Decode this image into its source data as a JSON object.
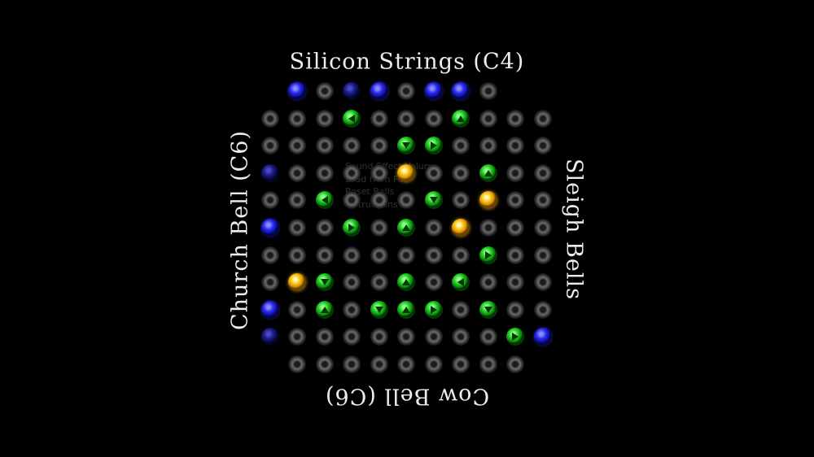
{
  "labels": {
    "top": "Silicon Strings (C4)",
    "bottom": "Cow Bell (C6)",
    "left": "Church Bell (C6)",
    "right": "Sleigh Bells"
  },
  "ghost_menu": [
    "Sound Effect Volume",
    "Load from File",
    "Reset Balls",
    "Instructions"
  ],
  "colors": {
    "blue": "#2b2bf0",
    "green": "#22cc22",
    "yellow": "#ffcc22",
    "off": "#3c3c3c"
  },
  "grid": {
    "rows": [
      [
        "",
        "",
        "B",
        "o",
        "b",
        "B",
        "o",
        "B",
        "B",
        "o",
        "",
        ""
      ],
      [
        "",
        "o",
        "o",
        "o",
        "gL",
        "o",
        "o",
        "o",
        "gU",
        "o",
        "o",
        "o"
      ],
      [
        "",
        "o",
        "o",
        "o",
        "o",
        "o",
        "gD",
        "gR",
        "o",
        "o",
        "o",
        "o"
      ],
      [
        "",
        "b",
        "o",
        "o",
        "o",
        "o",
        "Y",
        "o",
        "o",
        "gU",
        "o",
        "o"
      ],
      [
        "",
        "o",
        "o",
        "gL",
        "o",
        "o",
        "o",
        "gD",
        "o",
        "Y",
        "o",
        "o"
      ],
      [
        "",
        "B",
        "o",
        "o",
        "gR",
        "o",
        "gU",
        "o",
        "Y",
        "o",
        "o",
        "o"
      ],
      [
        "",
        "o",
        "o",
        "o",
        "o",
        "o",
        "o",
        "o",
        "o",
        "gR",
        "o",
        "o"
      ],
      [
        "",
        "o",
        "Y",
        "gD",
        "o",
        "o",
        "gU",
        "o",
        "gL",
        "o",
        "o",
        "o"
      ],
      [
        "",
        "B",
        "o",
        "gU",
        "o",
        "gD",
        "gU",
        "gR",
        "o",
        "gD",
        "o",
        "o"
      ],
      [
        "",
        "b",
        "o",
        "o",
        "o",
        "o",
        "o",
        "o",
        "o",
        "o",
        "gR",
        "B"
      ],
      [
        "",
        "",
        "o",
        "o",
        "o",
        "o",
        "o",
        "o",
        "o",
        "o",
        "o",
        ""
      ]
    ]
  }
}
